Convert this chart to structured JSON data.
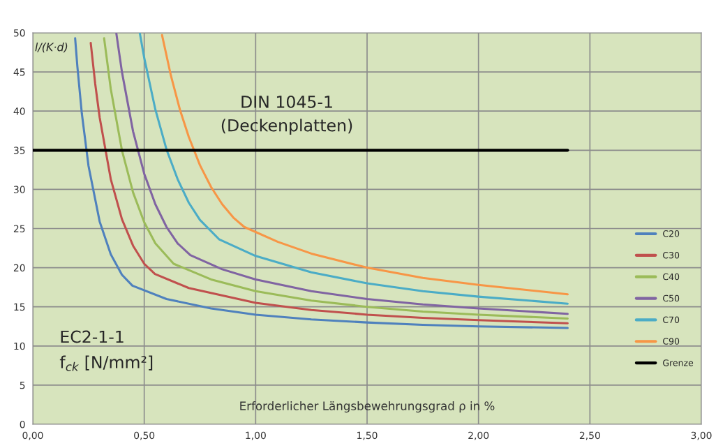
{
  "chart_data": {
    "type": "line",
    "ylabel": "l/(K·d)",
    "xlabel": "Erforderlicher Längsbewehrungsgrad ρ in %",
    "annotations": [
      "DIN 1045-1\n(Deckenplatten)",
      "EC2-1-1",
      "f$_{ck}$ [N/mm²]"
    ],
    "xlim": [
      0,
      3
    ],
    "ylim": [
      0,
      50
    ],
    "xticks": [
      {
        "value": 0,
        "label": "0,00"
      },
      {
        "value": 0.5,
        "label": "0,50"
      },
      {
        "value": 1,
        "label": "1,00"
      },
      {
        "value": 1.5,
        "label": "1,50"
      },
      {
        "value": 2,
        "label": "2,00"
      },
      {
        "value": 2.5,
        "label": "2,50"
      },
      {
        "value": 3,
        "label": "3,00"
      }
    ],
    "yticks": [
      0,
      5,
      10,
      15,
      20,
      25,
      30,
      35,
      40,
      45,
      50
    ],
    "grid": true,
    "legend": "right",
    "marker": "none",
    "line_style": "solid",
    "series": [
      {
        "name": "C20",
        "color": "#4f81bd",
        "x": [
          0.19,
          0.2,
          0.22,
          0.25,
          0.3,
          0.35,
          0.4,
          0.447,
          0.6,
          0.8,
          1.0,
          1.25,
          1.5,
          1.75,
          2.0,
          2.4
        ],
        "values": [
          49.3,
          45.7,
          39.7,
          33.0,
          25.9,
          21.7,
          19.1,
          17.7,
          16.0,
          14.8,
          14.0,
          13.4,
          13.0,
          12.7,
          12.5,
          12.3
        ]
      },
      {
        "name": "C30",
        "color": "#c0504d",
        "x": [
          0.26,
          0.28,
          0.3,
          0.35,
          0.4,
          0.45,
          0.5,
          0.548,
          0.7,
          1.0,
          1.25,
          1.5,
          1.75,
          2.0,
          2.4
        ],
        "values": [
          48.7,
          43.5,
          39.2,
          31.3,
          26.2,
          22.8,
          20.5,
          19.2,
          17.4,
          15.5,
          14.6,
          14.0,
          13.6,
          13.3,
          12.9
        ]
      },
      {
        "name": "C40",
        "color": "#9bbb59",
        "x": [
          0.32,
          0.35,
          0.4,
          0.45,
          0.5,
          0.55,
          0.632,
          0.8,
          1.0,
          1.25,
          1.5,
          1.75,
          2.0,
          2.4
        ],
        "values": [
          49.3,
          42.8,
          35.0,
          29.6,
          25.8,
          23.1,
          20.5,
          18.5,
          17.0,
          15.8,
          15.0,
          14.4,
          14.0,
          13.5
        ]
      },
      {
        "name": "C50",
        "color": "#8064a2",
        "x": [
          0.375,
          0.4,
          0.45,
          0.5,
          0.55,
          0.6,
          0.65,
          0.707,
          0.85,
          1.0,
          1.25,
          1.5,
          1.75,
          2.0,
          2.4
        ],
        "values": [
          49.9,
          45.0,
          37.4,
          32.0,
          28.1,
          25.2,
          23.1,
          21.6,
          19.8,
          18.5,
          17.0,
          16.0,
          15.3,
          14.8,
          14.1
        ]
      },
      {
        "name": "C70",
        "color": "#4bacc6",
        "x": [
          0.48,
          0.5,
          0.55,
          0.6,
          0.65,
          0.7,
          0.75,
          0.837,
          1.0,
          1.25,
          1.5,
          1.75,
          2.0,
          2.4
        ],
        "values": [
          50.0,
          46.8,
          40.2,
          35.1,
          31.3,
          28.3,
          26.1,
          23.6,
          21.5,
          19.4,
          18.0,
          17.0,
          16.3,
          15.4
        ]
      },
      {
        "name": "C90",
        "color": "#f79646",
        "x": [
          0.58,
          0.62,
          0.66,
          0.7,
          0.75,
          0.8,
          0.85,
          0.9,
          0.949,
          1.1,
          1.25,
          1.5,
          1.75,
          2.0,
          2.4
        ],
        "values": [
          49.7,
          44.5,
          40.2,
          36.7,
          33.1,
          30.3,
          28.1,
          26.4,
          25.2,
          23.3,
          21.8,
          20.0,
          18.7,
          17.8,
          16.6
        ]
      },
      {
        "name": "Grenze",
        "color": "#000000",
        "x": [
          0,
          2.4
        ],
        "values": [
          35,
          35
        ]
      }
    ]
  }
}
